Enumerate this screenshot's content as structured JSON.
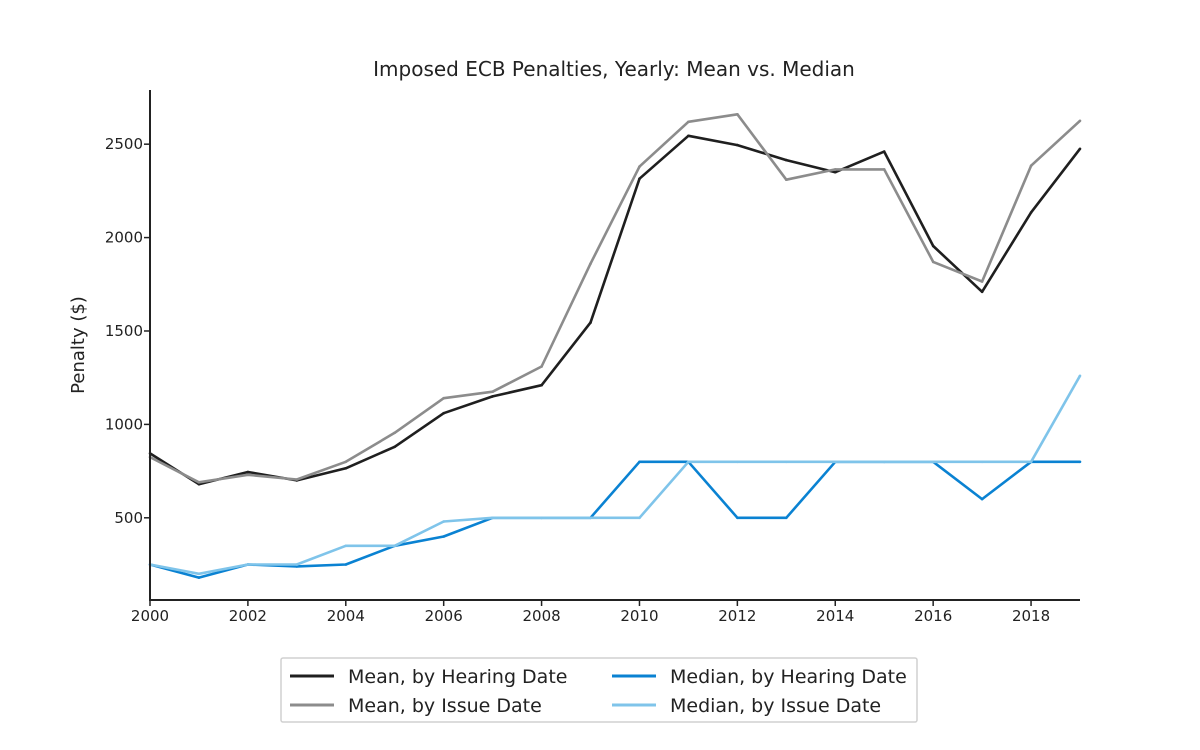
{
  "chart_data": {
    "type": "line",
    "title": "Imposed ECB Penalties, Yearly: Mean vs. Median",
    "xlabel": "",
    "ylabel": "Penalty ($)",
    "x": [
      2000,
      2001,
      2002,
      2003,
      2004,
      2005,
      2006,
      2007,
      2008,
      2009,
      2010,
      2011,
      2012,
      2013,
      2014,
      2015,
      2016,
      2017,
      2018,
      2019
    ],
    "xlim": [
      2000,
      2019
    ],
    "ylim": [
      60,
      2790
    ],
    "xticks": [
      2000,
      2002,
      2004,
      2006,
      2008,
      2010,
      2012,
      2014,
      2016,
      2018
    ],
    "yticks": [
      500,
      1000,
      1500,
      2000,
      2500
    ],
    "grid": false,
    "legend_position": "bottom-center",
    "series": [
      {
        "name": "Mean, by Hearing Date",
        "color": "#1f1f1f",
        "values": [
          845,
          680,
          745,
          700,
          765,
          880,
          1060,
          1150,
          1210,
          1545,
          2315,
          2545,
          2495,
          2415,
          2350,
          2460,
          1955,
          1710,
          2135,
          2475
        ]
      },
      {
        "name": "Mean, by Issue Date",
        "color": "#8c8c8c",
        "values": [
          825,
          690,
          730,
          705,
          800,
          955,
          1140,
          1175,
          1310,
          1860,
          2380,
          2620,
          2660,
          2310,
          2365,
          2365,
          1870,
          1765,
          2385,
          2625
        ]
      },
      {
        "name": "Median, by Hearing Date",
        "color": "#0a82d2",
        "values": [
          250,
          180,
          250,
          240,
          250,
          350,
          400,
          500,
          500,
          500,
          800,
          800,
          500,
          500,
          800,
          800,
          800,
          600,
          800,
          800
        ]
      },
      {
        "name": "Median, by Issue Date",
        "color": "#7fc4ea",
        "values": [
          250,
          200,
          250,
          250,
          350,
          350,
          480,
          500,
          500,
          500,
          500,
          800,
          800,
          800,
          800,
          800,
          800,
          800,
          800,
          1260
        ]
      }
    ]
  }
}
